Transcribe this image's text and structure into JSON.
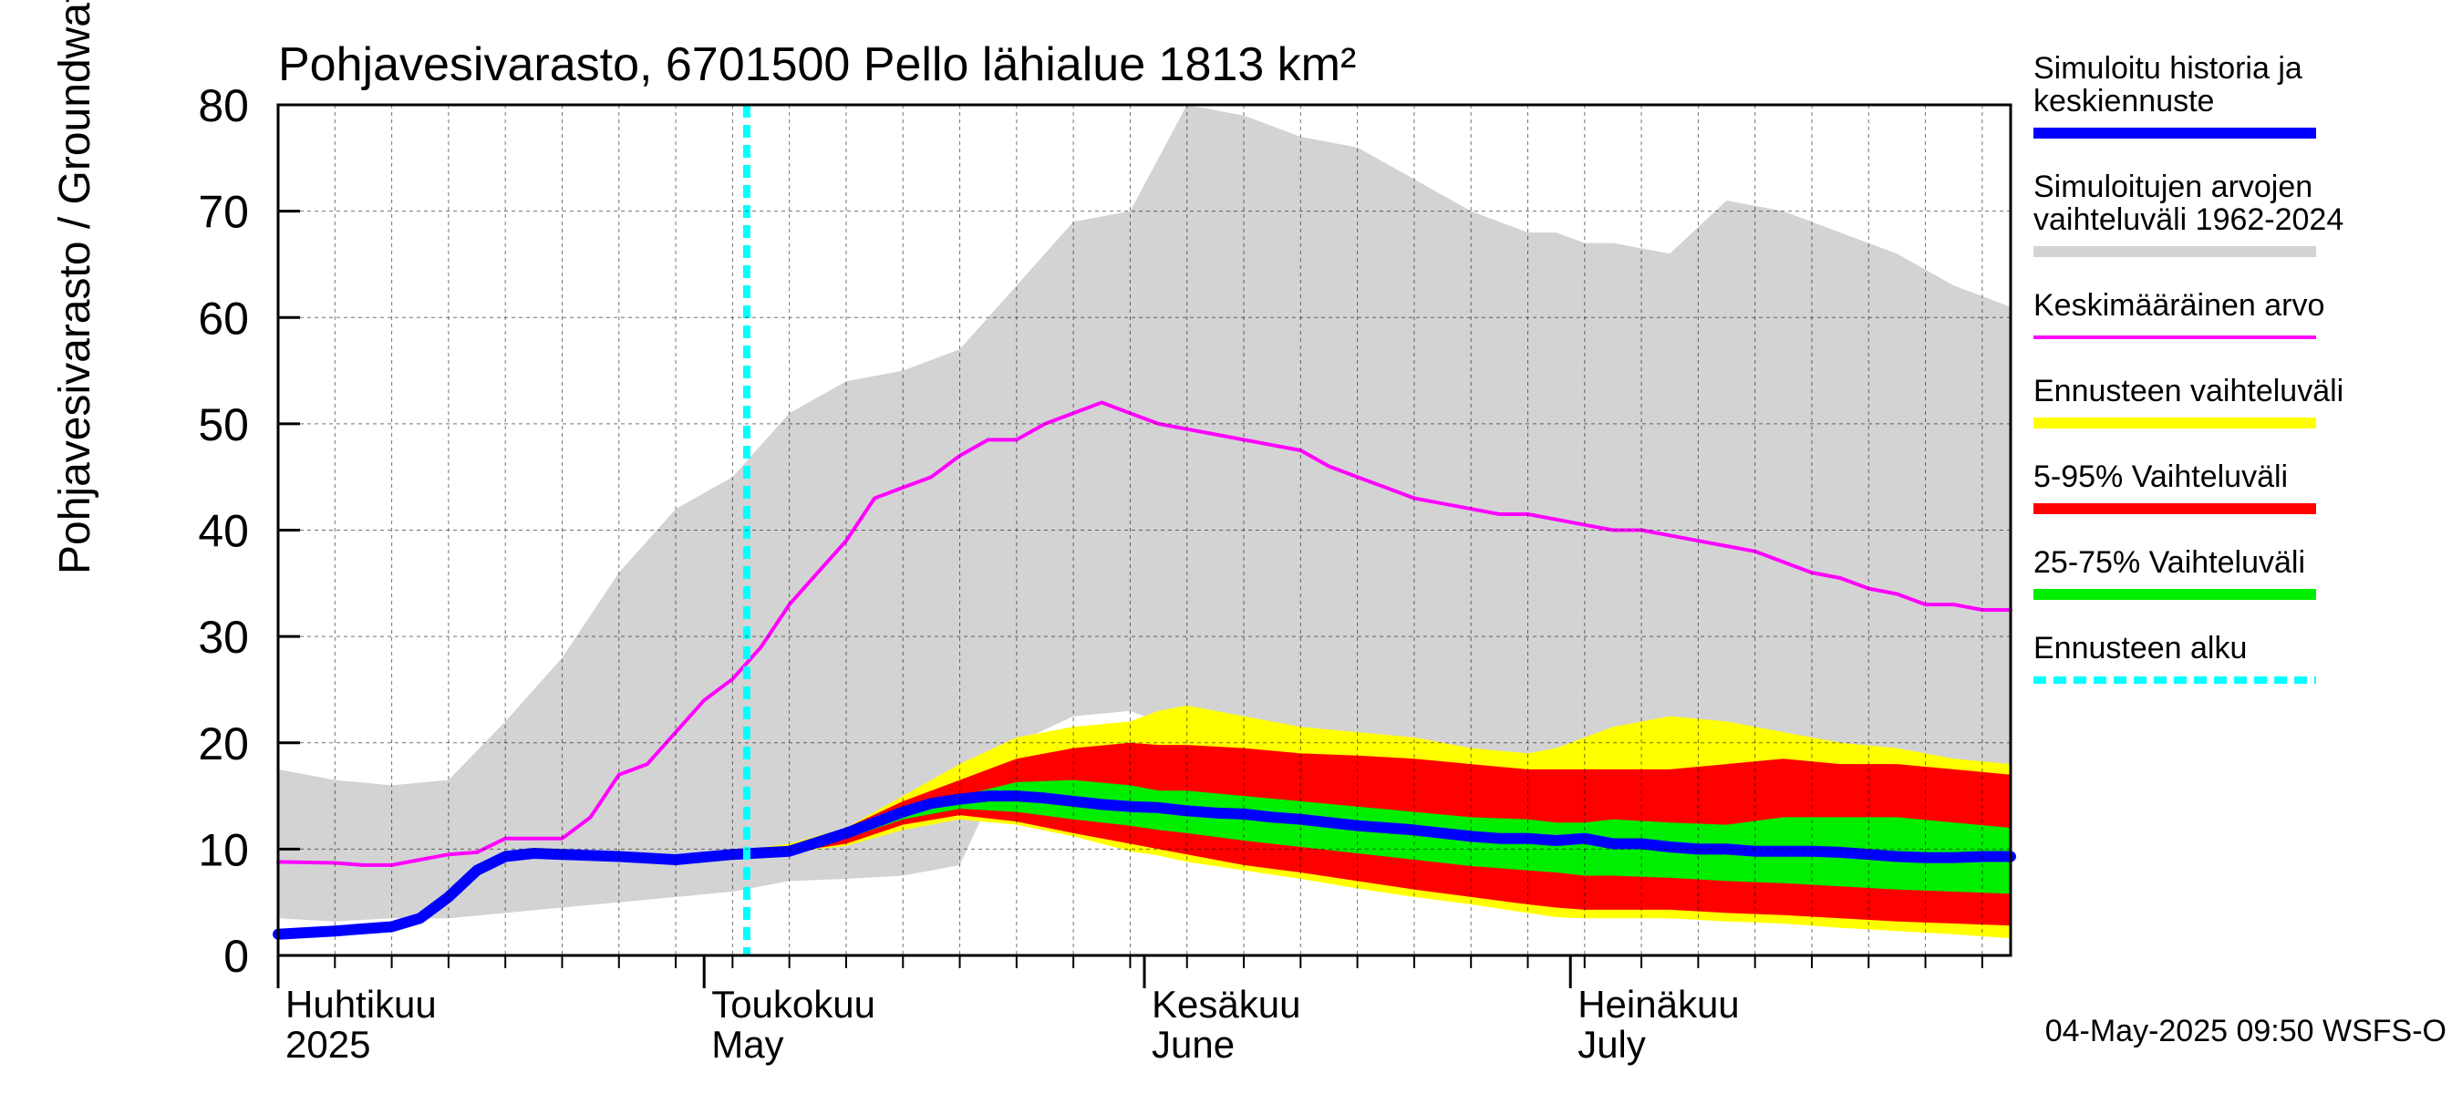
{
  "chart_data": {
    "type": "area",
    "title": "Pohjavesivarasto, 6701500 Pello lähialue 1813 km²",
    "ylabel": "Pohjavesivarasto / Groundwater storage   mm",
    "xlabel": "",
    "ylim": [
      0,
      80
    ],
    "xlim_days": [
      0,
      122
    ],
    "y_ticks": [
      "0",
      "10",
      "20",
      "30",
      "40",
      "50",
      "60",
      "70",
      "80"
    ],
    "y_tick_values": [
      0,
      10,
      20,
      30,
      40,
      50,
      60,
      70,
      80
    ],
    "month_labels": [
      {
        "fi": "Huhtikuu",
        "en": "2025",
        "day": 0
      },
      {
        "fi": "Toukokuu",
        "en": "May",
        "day": 30
      },
      {
        "fi": "Kesäkuu",
        "en": "June",
        "day": 61
      },
      {
        "fi": "Heinäkuu",
        "en": "July",
        "day": 91
      }
    ],
    "forecast_start_day": 33,
    "grid": true,
    "series": [
      {
        "name": "Simuloitujen arvojen vaihteluväli 1962-2024",
        "kind": "band",
        "color": "#d3d3d3",
        "x": [
          0,
          4,
          8,
          12,
          16,
          20,
          24,
          28,
          32,
          34,
          36,
          40,
          44,
          48,
          52,
          56,
          60,
          62,
          64,
          68,
          72,
          76,
          80,
          84,
          88,
          90,
          92,
          94,
          98,
          102,
          106,
          110,
          114,
          118,
          122
        ],
        "upper": [
          17.5,
          16.5,
          16,
          16.5,
          22,
          28,
          36,
          42,
          45,
          48,
          51,
          54,
          55,
          57,
          63,
          69,
          70,
          75,
          80,
          79,
          77,
          76,
          73,
          70,
          68,
          68,
          67,
          67,
          66,
          71,
          70,
          68,
          66,
          63,
          61
        ],
        "lower": [
          3.5,
          3.2,
          3.5,
          3.5,
          4,
          4.5,
          5,
          5.5,
          6,
          6.5,
          7,
          7.2,
          7.5,
          8.5,
          20,
          22.5,
          23,
          22,
          22.5,
          22,
          21,
          20.5,
          19.5,
          19,
          18.5,
          18,
          17.5,
          17,
          17,
          17.5,
          17,
          16.5,
          16,
          15,
          14
        ]
      },
      {
        "name": "Ennusteen vaihteluväli",
        "kind": "band",
        "color": "#ffff00",
        "x": [
          32,
          36,
          40,
          44,
          48,
          52,
          56,
          60,
          62,
          64,
          68,
          72,
          76,
          80,
          84,
          88,
          90,
          92,
          94,
          98,
          102,
          106,
          110,
          114,
          118,
          122
        ],
        "upper": [
          9.8,
          10.5,
          12,
          15,
          18,
          20.5,
          21.5,
          22,
          23,
          23.5,
          22.5,
          21.5,
          21,
          20.5,
          19.5,
          19,
          19.5,
          20.5,
          21.5,
          22.5,
          22,
          21,
          20,
          19.5,
          18.5,
          18
        ],
        "lower": [
          9.8,
          9.7,
          10.3,
          11.8,
          12.8,
          12.3,
          11.2,
          9.8,
          9.4,
          8.8,
          8,
          7.2,
          6.3,
          5.5,
          4.8,
          4,
          3.6,
          3.5,
          3.5,
          3.5,
          3.2,
          3,
          2.6,
          2.3,
          2,
          1.6
        ]
      },
      {
        "name": "5-95% Vaihteluväli",
        "kind": "band",
        "color": "#ff0000",
        "x": [
          32,
          36,
          40,
          44,
          48,
          52,
          56,
          60,
          62,
          64,
          68,
          72,
          76,
          80,
          84,
          88,
          90,
          92,
          94,
          98,
          102,
          106,
          110,
          114,
          118,
          122
        ],
        "upper": [
          9.8,
          10.2,
          12,
          14.5,
          16.5,
          18.5,
          19.5,
          20,
          19.8,
          19.8,
          19.5,
          19,
          18.8,
          18.5,
          18,
          17.5,
          17.5,
          17.5,
          17.5,
          17.5,
          18,
          18.5,
          18,
          18,
          17.5,
          17
        ],
        "lower": [
          9.8,
          9.7,
          10.5,
          12.3,
          13.2,
          12.6,
          11.5,
          10.5,
          10,
          9.5,
          8.5,
          7.8,
          7,
          6.2,
          5.5,
          4.8,
          4.5,
          4.3,
          4.3,
          4.3,
          4,
          3.8,
          3.5,
          3.2,
          3,
          2.8
        ]
      },
      {
        "name": "25-75% Vaihteluväli",
        "kind": "band",
        "color": "#00ee00",
        "x": [
          32,
          36,
          40,
          44,
          48,
          52,
          56,
          60,
          62,
          64,
          68,
          72,
          76,
          80,
          84,
          88,
          90,
          92,
          94,
          98,
          102,
          106,
          110,
          114,
          118,
          122
        ],
        "upper": [
          9.8,
          10,
          11.5,
          13.5,
          15,
          16.3,
          16.5,
          16,
          15.5,
          15.5,
          15,
          14.5,
          14,
          13.5,
          13,
          12.8,
          12.5,
          12.5,
          12.8,
          12.5,
          12.3,
          13,
          13,
          13,
          12.5,
          12
        ],
        "lower": [
          9.8,
          9.8,
          11,
          12.8,
          13.8,
          13.5,
          12.8,
          12.2,
          11.8,
          11.5,
          10.8,
          10.2,
          9.6,
          9,
          8.4,
          8,
          7.8,
          7.5,
          7.5,
          7.3,
          7,
          6.8,
          6.5,
          6.2,
          6,
          5.8
        ]
      },
      {
        "name": "Keskimääräinen arvo",
        "kind": "line",
        "color": "#ff00ff",
        "width": 4,
        "x": [
          0,
          4,
          6,
          8,
          12,
          14,
          16,
          18,
          20,
          22,
          24,
          26,
          28,
          30,
          32,
          34,
          36,
          38,
          40,
          42,
          44,
          46,
          48,
          50,
          52,
          54,
          56,
          58,
          60,
          62,
          64,
          66,
          68,
          70,
          72,
          74,
          76,
          78,
          80,
          82,
          84,
          86,
          88,
          90,
          92,
          94,
          96,
          98,
          100,
          102,
          104,
          106,
          108,
          110,
          112,
          114,
          116,
          118,
          120,
          122
        ],
        "y": [
          8.8,
          8.7,
          8.5,
          8.5,
          9.5,
          9.7,
          11,
          11,
          11,
          13,
          17,
          18,
          21,
          24,
          26,
          29,
          33,
          36,
          39,
          43,
          44,
          45,
          47,
          48.5,
          48.5,
          50,
          51,
          52,
          51,
          50,
          49.5,
          49,
          48.5,
          48,
          47.5,
          46,
          45,
          44,
          43,
          42.5,
          42,
          41.5,
          41.5,
          41,
          40.5,
          40,
          40,
          39.5,
          39,
          38.5,
          38,
          37,
          36,
          35.5,
          34.5,
          34,
          33,
          33,
          32.5,
          32.5
        ]
      },
      {
        "name": "Simuloitu historia ja keskiennuste",
        "kind": "line",
        "color": "#0000ff",
        "width": 12,
        "x": [
          0,
          4,
          8,
          10,
          12,
          14,
          16,
          18,
          20,
          24,
          28,
          32,
          36,
          40,
          44,
          46,
          48,
          50,
          52,
          54,
          56,
          58,
          60,
          62,
          64,
          66,
          68,
          70,
          72,
          74,
          76,
          78,
          80,
          82,
          84,
          86,
          88,
          90,
          92,
          94,
          96,
          98,
          100,
          102,
          104,
          106,
          108,
          110,
          112,
          114,
          116,
          118,
          120,
          122
        ],
        "y": [
          2,
          2.3,
          2.7,
          3.5,
          5.5,
          8,
          9.3,
          9.6,
          9.5,
          9.3,
          9,
          9.5,
          9.8,
          11.5,
          13.5,
          14.3,
          14.7,
          15,
          15,
          14.8,
          14.5,
          14.2,
          14,
          13.9,
          13.6,
          13.4,
          13.3,
          13,
          12.8,
          12.5,
          12.2,
          12,
          11.8,
          11.5,
          11.2,
          11,
          11,
          10.8,
          11,
          10.5,
          10.5,
          10.2,
          10,
          10,
          9.8,
          9.8,
          9.8,
          9.7,
          9.5,
          9.3,
          9.2,
          9.2,
          9.3,
          9.3
        ]
      },
      {
        "name": "Ennusteen alku",
        "kind": "vline",
        "color": "#00ffff",
        "x": 33
      }
    ],
    "legend": [
      {
        "label": "Simuloitu historia ja\nkeskiennuste",
        "color": "#0000ff",
        "style": "thick"
      },
      {
        "label": "Simuloitujen arvojen\nvaihteluväli 1962-2024",
        "color": "#d3d3d3",
        "style": "thick"
      },
      {
        "label": "Keskimääräinen arvo",
        "color": "#ff00ff",
        "style": "thin"
      },
      {
        "label": "Ennusteen vaihteluväli",
        "color": "#ffff00",
        "style": "thick"
      },
      {
        "label": "5-95% Vaihteluväli",
        "color": "#ff0000",
        "style": "thick"
      },
      {
        "label": "25-75% Vaihteluväli",
        "color": "#00ee00",
        "style": "thick"
      },
      {
        "label": "Ennusteen alku",
        "color": "#00ffff",
        "style": "dashed"
      }
    ],
    "footer": "04-May-2025 09:50 WSFS-O"
  }
}
